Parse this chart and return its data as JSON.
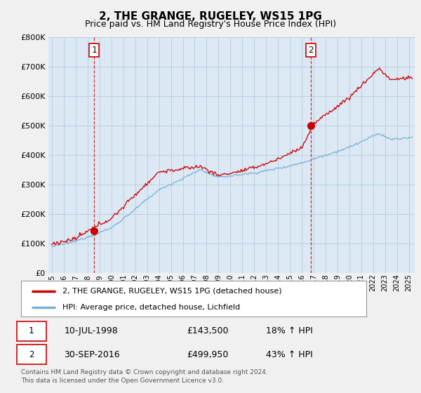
{
  "title": "2, THE GRANGE, RUGELEY, WS15 1PG",
  "subtitle": "Price paid vs. HM Land Registry's House Price Index (HPI)",
  "legend_line1": "2, THE GRANGE, RUGELEY, WS15 1PG (detached house)",
  "legend_line2": "HPI: Average price, detached house, Lichfield",
  "sale1_date": "10-JUL-1998",
  "sale1_price": "£143,500",
  "sale1_hpi": "18% ↑ HPI",
  "sale2_date": "30-SEP-2016",
  "sale2_price": "£499,950",
  "sale2_hpi": "43% ↑ HPI",
  "footer": "Contains HM Land Registry data © Crown copyright and database right 2024.\nThis data is licensed under the Open Government Licence v3.0.",
  "sale1_x": 1998.53,
  "sale1_y": 143500,
  "sale2_x": 2016.75,
  "sale2_y": 499950,
  "line_color_red": "#cc0000",
  "line_color_blue": "#7aafd4",
  "marker_color_red": "#cc0000",
  "bg_color": "#f0f0f0",
  "plot_bg_color": "#dce9f5",
  "grid_color": "#b8cfe0",
  "ylim": [
    0,
    800000
  ],
  "xlim_start": 1994.7,
  "xlim_end": 2025.5,
  "yticks": [
    0,
    100000,
    200000,
    300000,
    400000,
    500000,
    600000,
    700000,
    800000
  ],
  "xticks": [
    1995,
    1996,
    1997,
    1998,
    1999,
    2000,
    2001,
    2002,
    2003,
    2004,
    2005,
    2006,
    2007,
    2008,
    2009,
    2010,
    2011,
    2012,
    2013,
    2014,
    2015,
    2016,
    2017,
    2018,
    2019,
    2020,
    2021,
    2022,
    2023,
    2024,
    2025
  ]
}
